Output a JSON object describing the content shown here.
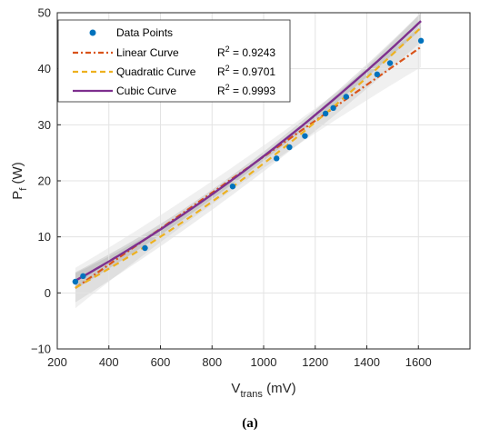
{
  "chart_data": {
    "type": "scatter",
    "xlabel": {
      "main": "V",
      "sub": "trans",
      "unit": " (mV)"
    },
    "ylabel": {
      "main": "P",
      "sub": "f",
      "unit": " (W)"
    },
    "xlim": [
      200,
      1800
    ],
    "ylim": [
      -10,
      50
    ],
    "xticks": [
      200,
      400,
      600,
      800,
      1000,
      1200,
      1400,
      1600
    ],
    "yticks": [
      -10,
      0,
      10,
      20,
      30,
      40,
      50
    ],
    "grid": true,
    "legend_position": "top-left",
    "caption": "(a)",
    "points": {
      "name": "Data Points",
      "color": "#0072BD",
      "x": [
        270,
        300,
        540,
        880,
        1050,
        1100,
        1160,
        1240,
        1270,
        1320,
        1440,
        1490,
        1610
      ],
      "y": [
        2,
        3,
        8,
        19,
        24,
        26,
        28,
        32,
        33,
        35,
        39,
        41,
        45
      ]
    },
    "series": [
      {
        "name": "Linear Curve",
        "r2_label": "R",
        "r2_sup": "2",
        "r2_value": " = 0.9243",
        "color": "#D95319",
        "dash": "dashdot",
        "coef": [
          -7.8,
          0.0321,
          0,
          0
        ]
      },
      {
        "name": "Quadratic Curve",
        "r2_label": "R",
        "r2_sup": "2",
        "r2_value": " = 0.9701",
        "color": "#EDB120",
        "dash": "dash",
        "coef": [
          -5.4,
          0.0215,
          7e-06,
          0
        ]
      },
      {
        "name": "Cubic Curve",
        "r2_label": "R",
        "r2_sup": "2",
        "r2_value": " = 0.9993",
        "color": "#7E2F8E",
        "dash": "solid",
        "coef": [
          -4.2,
          0.0218,
          6.8e-06,
          0
        ]
      }
    ]
  }
}
